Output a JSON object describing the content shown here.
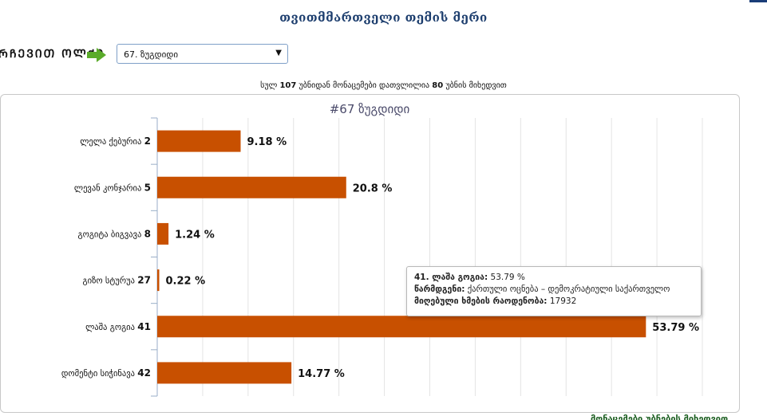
{
  "header": {
    "title": "თვითმმართველი თემის მერი"
  },
  "selector": {
    "label": "ᲠᲩᲔᲕᲘᲗ ᲝᲚᲥᲘ",
    "selected": "67. ზუგდიდი"
  },
  "stations_note": {
    "prefix": "სულ",
    "total": "107",
    "middle": "უბნიდან მონაცემები დათვლილია",
    "counted": "80",
    "suffix": "უბნის მიხედვით"
  },
  "footer": {
    "note": "მონაცემები უბნების მიხედვით"
  },
  "tooltip": {
    "candidate": "41. ლაშა გოგია:",
    "percent": "53.79 %",
    "party_label": "წარმდგენი:",
    "party_value": "ქართული ოცნება – დემოკრატიული საქართველო",
    "votes_label": "მიღებული ხმების რაოდენობა:",
    "votes_value": "17932"
  },
  "colors": {
    "bar": "#c85000",
    "title": "#1d3e6e",
    "arrow": "#5aab2a"
  },
  "chart_data": {
    "type": "bar",
    "orientation": "horizontal",
    "title": "#67 ზუგდიდი",
    "categories": [
      "ლელა ქებურია",
      "ლევან კონჯარია",
      "გოგიტა ბიგვავა",
      "გიზო სტურუა",
      "ლაშა გოგია",
      "დომენტი სიჭინავა"
    ],
    "numbers": [
      "2",
      "5",
      "8",
      "27",
      "41",
      "42"
    ],
    "values": [
      9.18,
      20.8,
      1.24,
      0.22,
      53.79,
      14.77
    ],
    "value_labels": [
      "9.18 %",
      "20.8 %",
      "1.24 %",
      "0.22 %",
      "53.79 %",
      "14.77 %"
    ],
    "xlim": [
      0,
      60
    ],
    "grid": true,
    "legend": "none"
  }
}
